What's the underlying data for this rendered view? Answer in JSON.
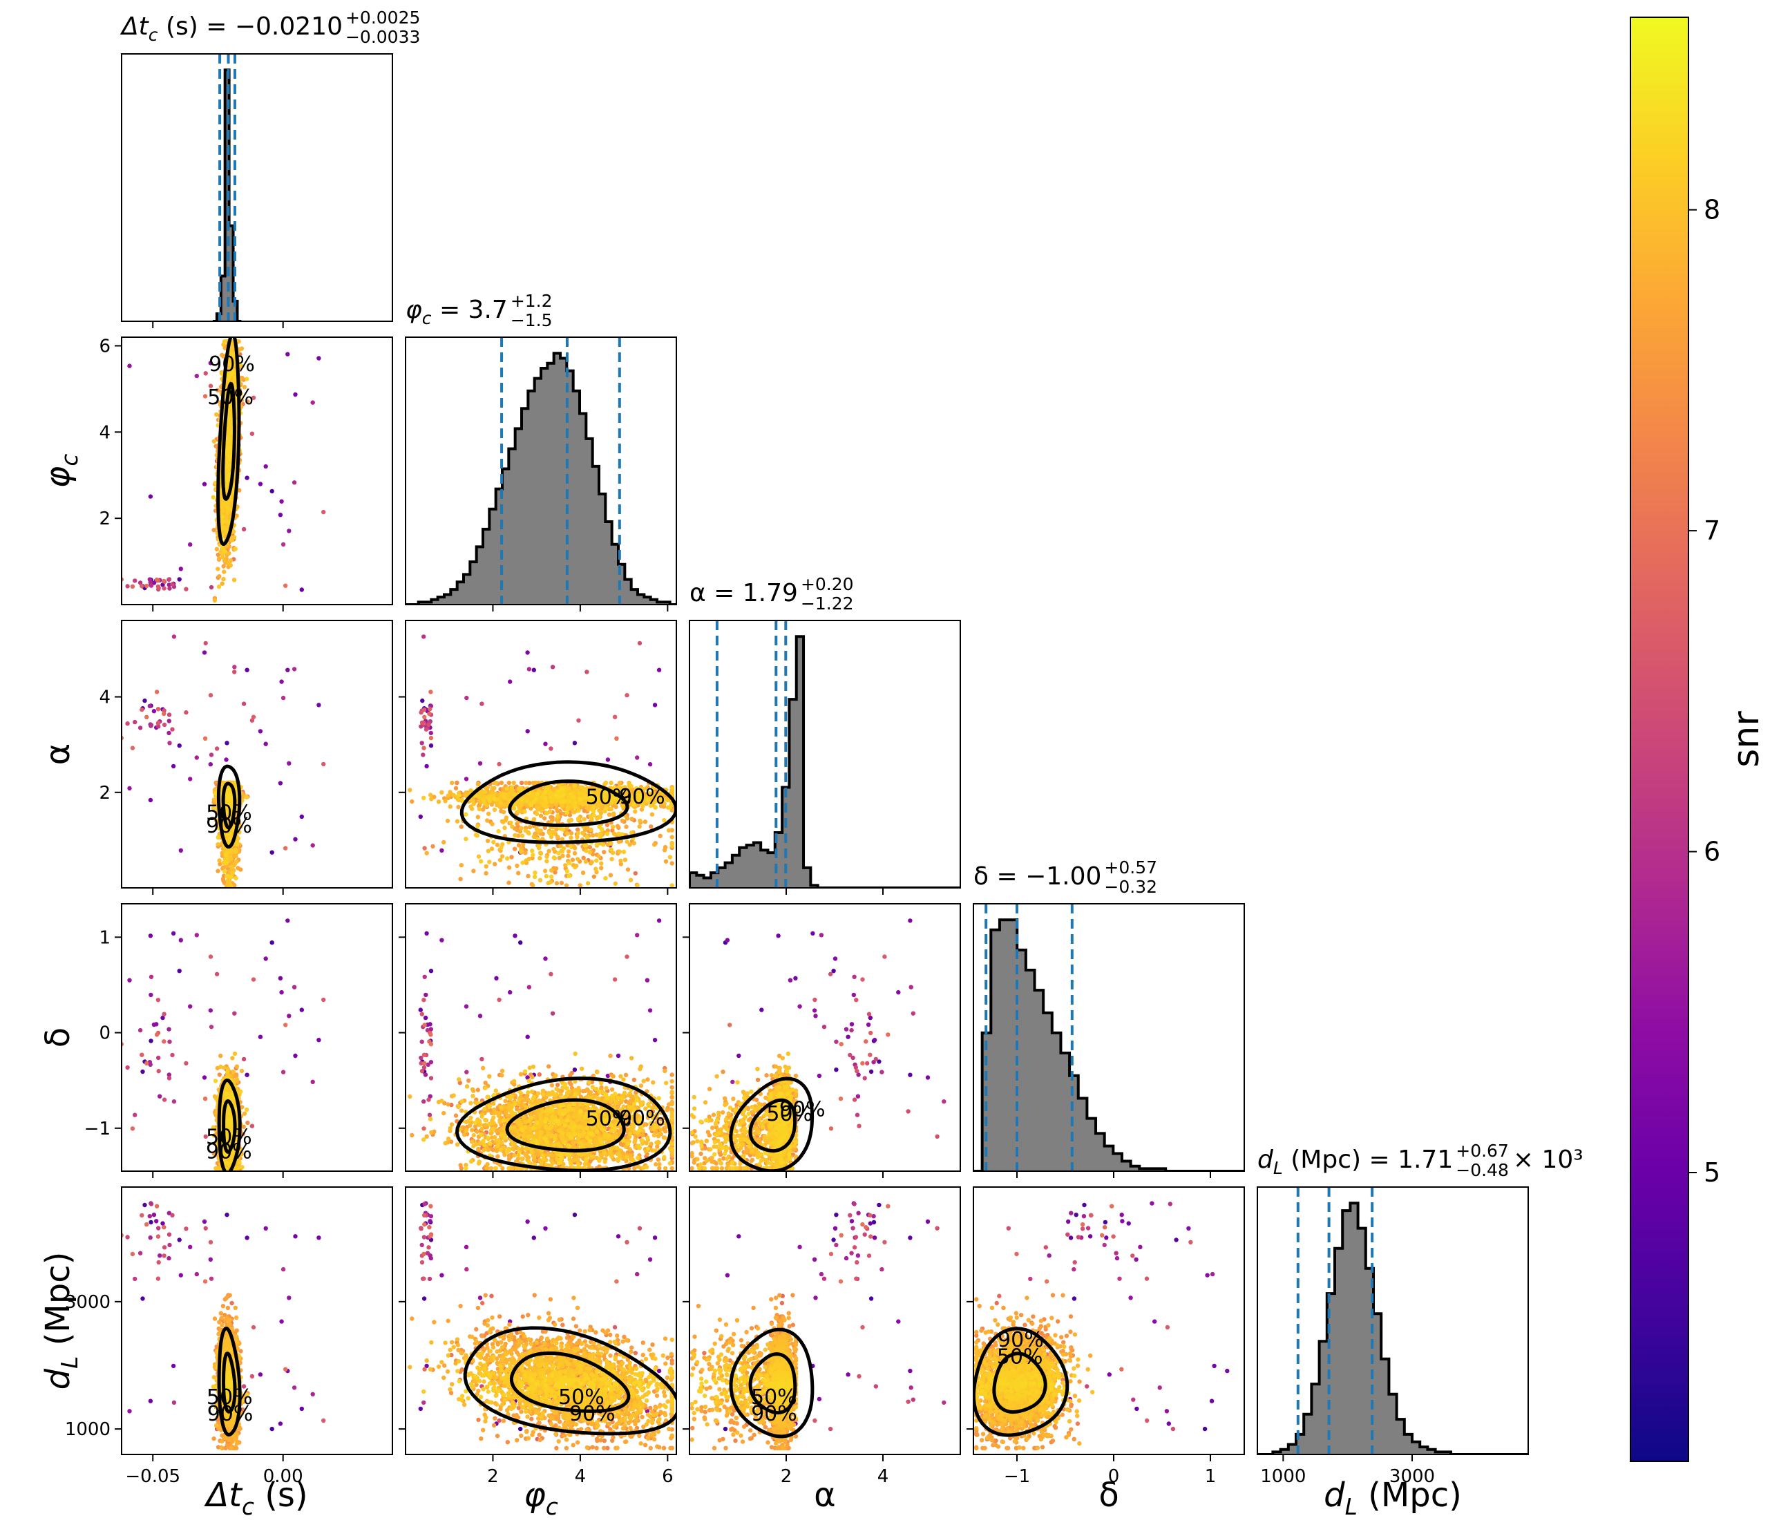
{
  "chart_data": {
    "type": "scatter",
    "kind": "corner-plot",
    "params": [
      {
        "key": "dt",
        "label": "Δt_c (s)",
        "lim": [
          -0.062,
          0.042
        ],
        "ticks": [
          -0.05,
          0.0
        ],
        "tick_labels": [
          "−0.05",
          "0.00"
        ],
        "title_lhs": "Δt_c (s) = −0.0210",
        "title_sup": "+0.0025",
        "title_sub": "−0.0033",
        "title_suffix": "",
        "median": -0.021,
        "lo": -0.0243,
        "hi": -0.0185,
        "hist": {
          "edges_lo": -0.027,
          "edges_hi": -0.016,
          "values": [
            0,
            3,
            18,
            100,
            38,
            8,
            0
          ]
        }
      },
      {
        "key": "phi",
        "label": "φ_c",
        "lim": [
          0,
          6.2
        ],
        "ticks": [
          2,
          4,
          6
        ],
        "tick_labels": [
          "2",
          "4",
          "6"
        ],
        "title_lhs": "φ_c = 3.7",
        "title_sup": "+1.2",
        "title_sub": "−1.5",
        "title_suffix": "",
        "median": 3.7,
        "lo": 2.2,
        "hi": 4.9,
        "hist": {
          "edges_lo": 0,
          "edges_hi": 6.2,
          "values": [
            0,
            0,
            1,
            1,
            2,
            3,
            4,
            6,
            9,
            12,
            17,
            23,
            30,
            38,
            46,
            54,
            62,
            70,
            78,
            85,
            90,
            94,
            96,
            100,
            98,
            93,
            85,
            76,
            66,
            55,
            44,
            33,
            24,
            16,
            10,
            6,
            4,
            3,
            2,
            1,
            1,
            0
          ]
        }
      },
      {
        "key": "alpha",
        "label": "α",
        "lim": [
          0,
          5.6
        ],
        "ticks": [
          2,
          4
        ],
        "tick_labels": [
          "2",
          "4"
        ],
        "title_lhs": "α = 1.79",
        "title_sup": "+0.20",
        "title_sub": "−1.22",
        "title_suffix": "",
        "median": 1.79,
        "lo": 0.57,
        "hi": 1.99,
        "hist": {
          "edges_lo": 0,
          "edges_hi": 5.6,
          "values": [
            6,
            5,
            4,
            6,
            8,
            10,
            13,
            16,
            17,
            18,
            15,
            14,
            22,
            40,
            75,
            100,
            8,
            1,
            0,
            0,
            0,
            0,
            0,
            0,
            0,
            0,
            0,
            0,
            0,
            0,
            0,
            0,
            0,
            0,
            0,
            0,
            0,
            0
          ]
        }
      },
      {
        "key": "delta",
        "label": "δ",
        "lim": [
          -1.45,
          1.35
        ],
        "ticks": [
          -1,
          0,
          1
        ],
        "tick_labels": [
          "−1",
          "0",
          "1"
        ],
        "title_lhs": "δ = −1.00",
        "title_sup": "+0.57",
        "title_sub": "−0.32",
        "title_suffix": "",
        "median": -1.0,
        "lo": -1.32,
        "hi": -0.43,
        "hist": {
          "edges_lo": -1.45,
          "edges_hi": 1.35,
          "values": [
            0,
            55,
            96,
            100,
            100,
            88,
            80,
            72,
            63,
            55,
            47,
            38,
            29,
            21,
            15,
            10,
            7,
            4,
            2,
            1,
            1,
            1,
            0,
            0,
            0,
            0,
            0,
            0,
            0,
            0,
            0
          ]
        }
      },
      {
        "key": "dl",
        "label": "d_L (Mpc)",
        "lim": [
          600,
          4800
        ],
        "ticks": [
          1000,
          3000
        ],
        "tick_labels": [
          "1000",
          "3000"
        ],
        "title_lhs": "d_L (Mpc) = 1.71",
        "title_sup": "+0.67",
        "title_sub": "−0.48",
        "title_suffix": " × 10³",
        "median": 1710,
        "lo": 1230,
        "hi": 2380,
        "hist": {
          "edges_lo": 600,
          "edges_hi": 4800,
          "values": [
            0,
            0,
            1,
            2,
            4,
            8,
            16,
            28,
            45,
            64,
            82,
            97,
            100,
            90,
            74,
            56,
            38,
            24,
            14,
            8,
            5,
            3,
            2,
            1,
            1,
            0,
            0,
            0,
            0,
            0,
            0,
            0,
            0,
            0,
            0
          ]
        }
      }
    ],
    "contour_labels": [
      "50%",
      "90%"
    ],
    "colorbar": {
      "label": "snr",
      "min": 4.1,
      "max": 8.6,
      "ticks": [
        5,
        6,
        7,
        8
      ],
      "tick_labels": [
        "5",
        "6",
        "7",
        "8"
      ]
    },
    "colors": {
      "hist_fill": "#808080",
      "quantile_line": "#1f77b4",
      "contour": "#000000"
    }
  }
}
